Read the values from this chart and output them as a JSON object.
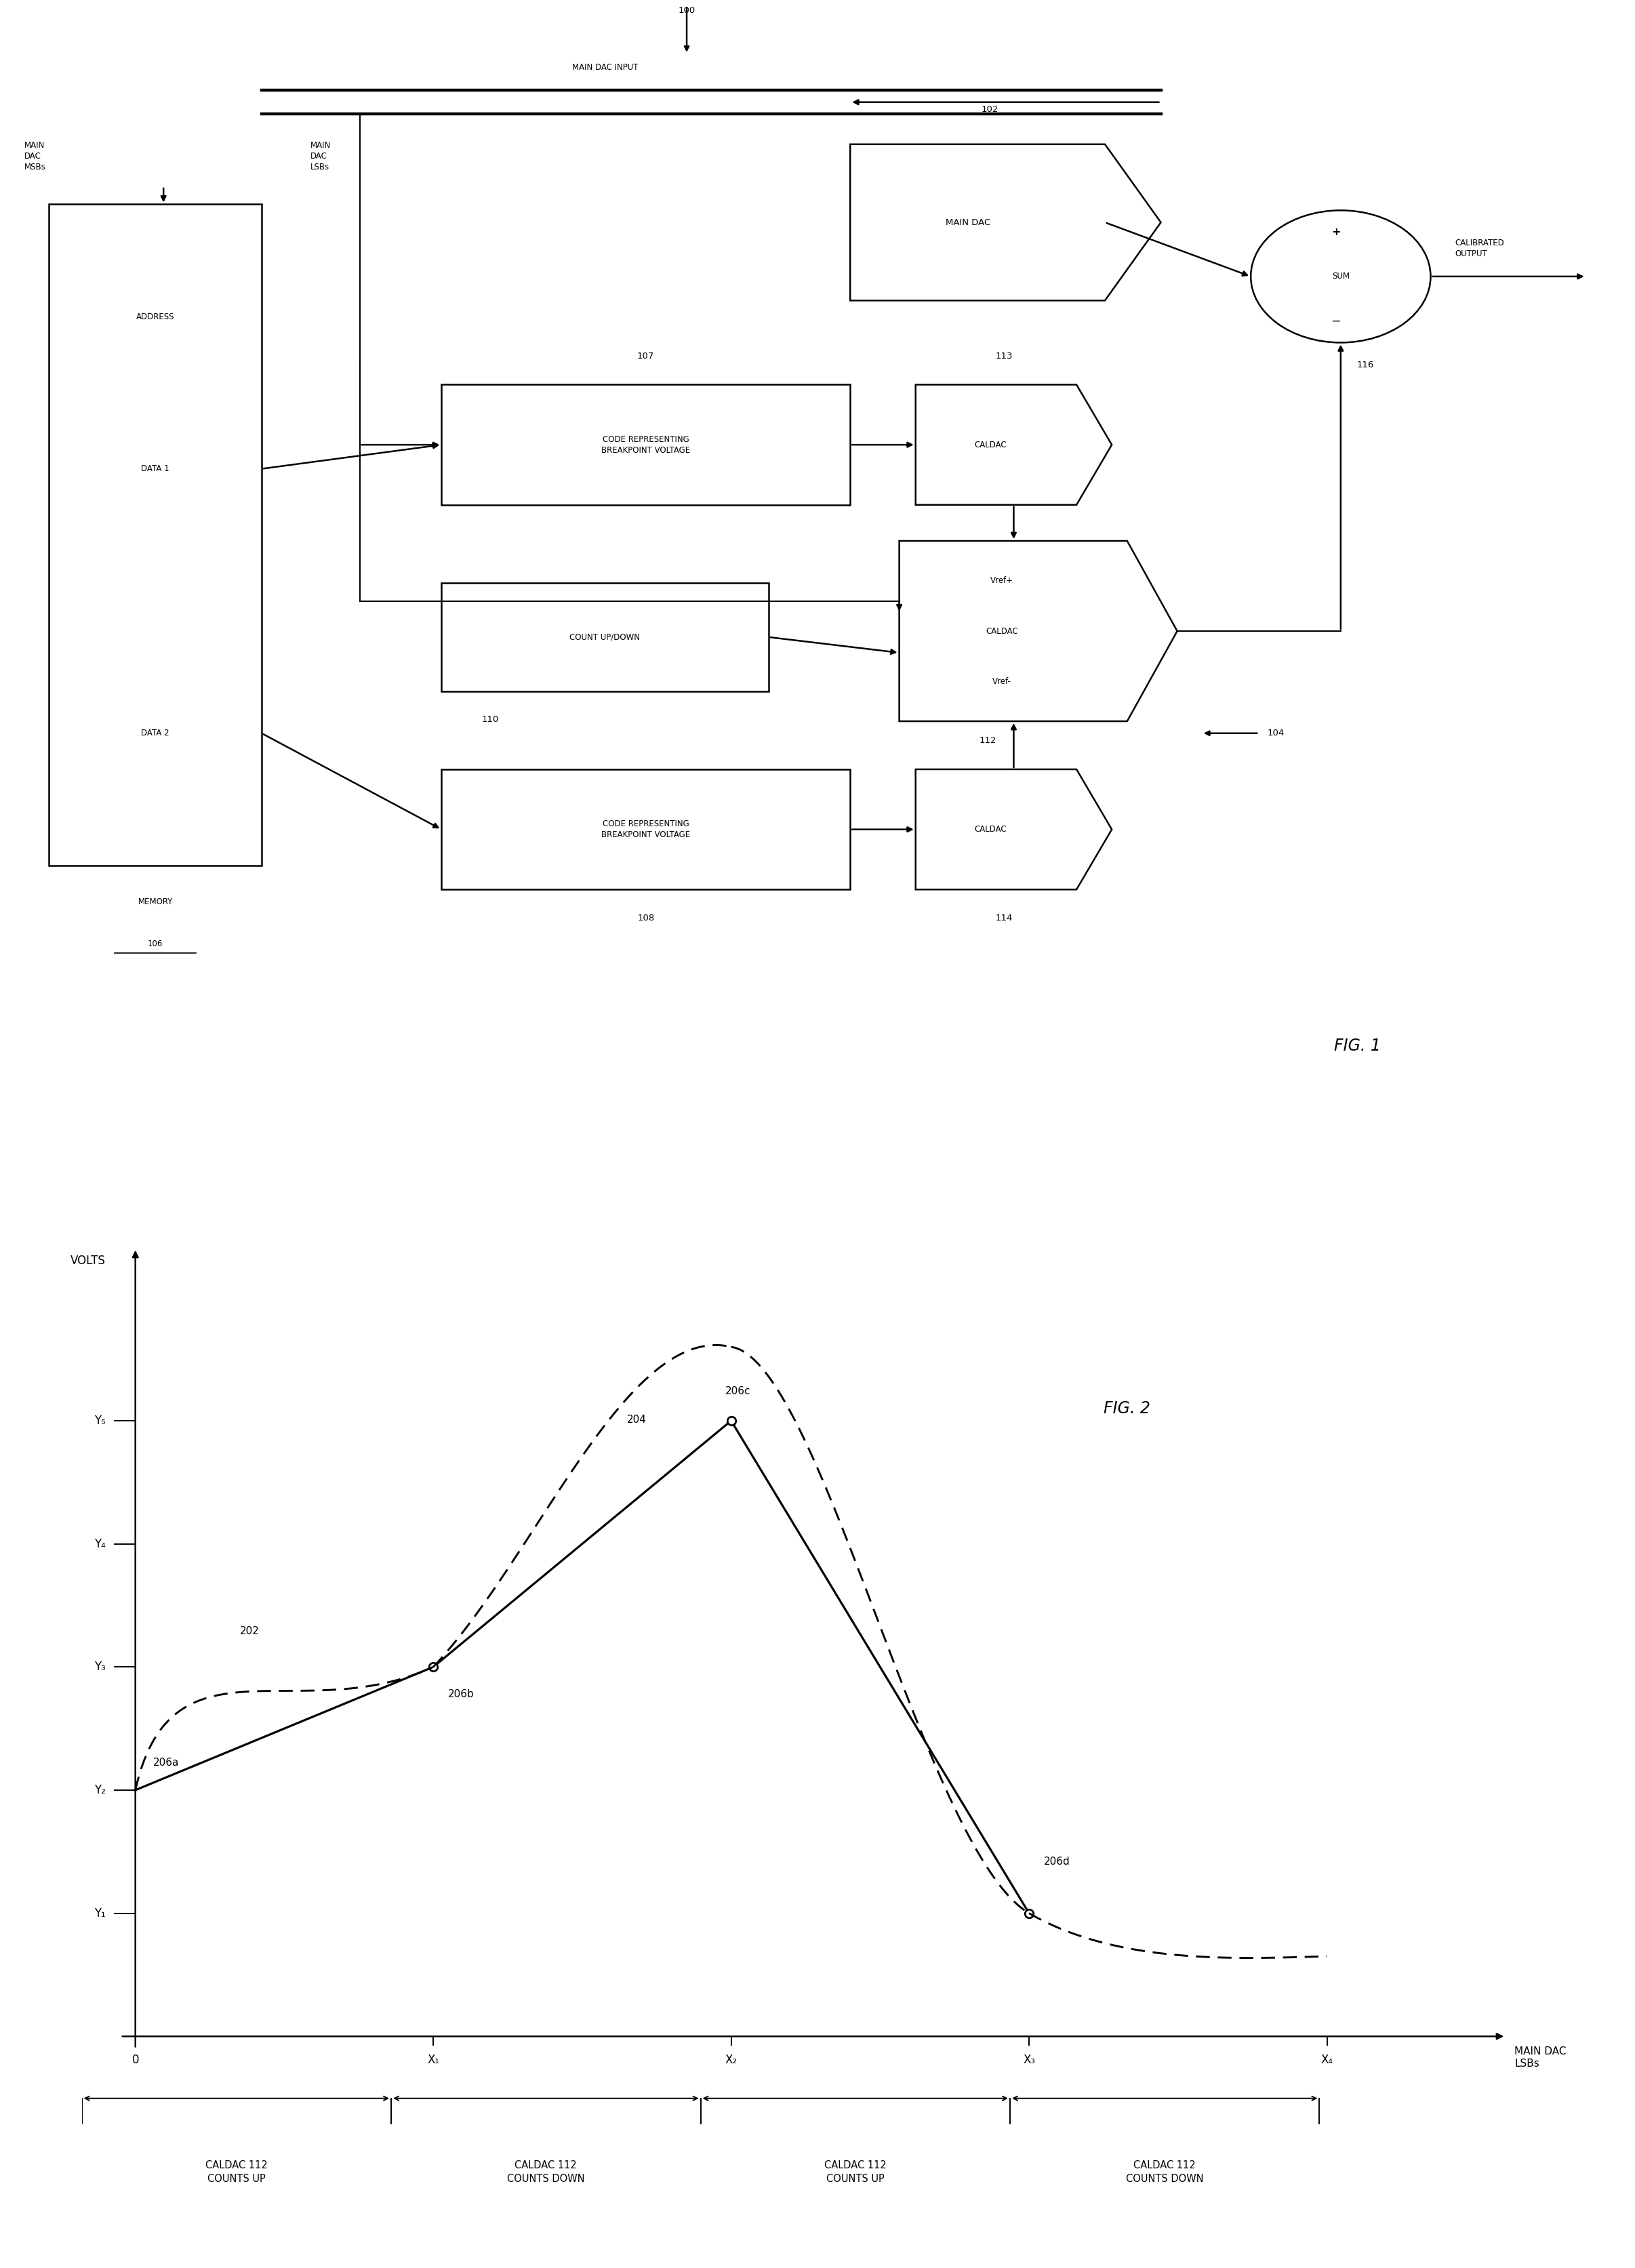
{
  "fig_width": 24.12,
  "fig_height": 33.46,
  "bg_color": "#ffffff",
  "line_color": "#000000",
  "fig1": {
    "title": "FIG. 1",
    "labels": {
      "100": "100",
      "102": "102",
      "104": "104",
      "106": "106",
      "107": "107",
      "108": "108",
      "110": "110",
      "112": "112",
      "113": "113",
      "114": "114",
      "116": "116"
    },
    "main_dac_input": "MAIN DAC INPUT",
    "main_dac": "MAIN DAC",
    "address": "ADDRESS",
    "memory": "MEMORY",
    "data1": "DATA 1",
    "data2": "DATA 2",
    "main_dac_msbs": "MAIN\nDAC\nMSBs",
    "main_dac_lsbs": "MAIN\nDAC\nLSBs",
    "code1": "CODE REPRESENTING\nBREAKPOINT VOLTAGE",
    "code2": "CODE REPRESENTING\nBREAKPOINT VOLTAGE",
    "count_updown": "COUNT UP/DOWN",
    "caldac_113": "CALDAC",
    "caldac_vref_text": "Vref+\nCALDAC\nVref-",
    "caldac_114": "CALDAC",
    "sum": "SUM",
    "calibrated_output": "CALIBRATED\nOUTPUT",
    "plus_sign": "+",
    "minus_sign": "−"
  },
  "fig2": {
    "title": "FIG. 2",
    "xlabel": "MAIN DAC\nLSBs",
    "ylabel": "VOLTS",
    "ytick_labels": [
      "Y₁",
      "Y₂",
      "Y₃",
      "Y₄",
      "Y₅"
    ],
    "xtick_labels": [
      "0",
      "X₁",
      "X₂",
      "X₃",
      "X₄"
    ],
    "label_202": "202",
    "label_204": "204",
    "label_206a": "206a",
    "label_206b": "206b",
    "label_206c": "206c",
    "label_206d": "206d",
    "caldac_labels": [
      "CALDAC 112\nCOUNTS UP",
      "CALDAC 112\nCOUNTS DOWN",
      "CALDAC 112\nCOUNTS UP",
      "CALDAC 112\nCOUNTS DOWN"
    ]
  }
}
